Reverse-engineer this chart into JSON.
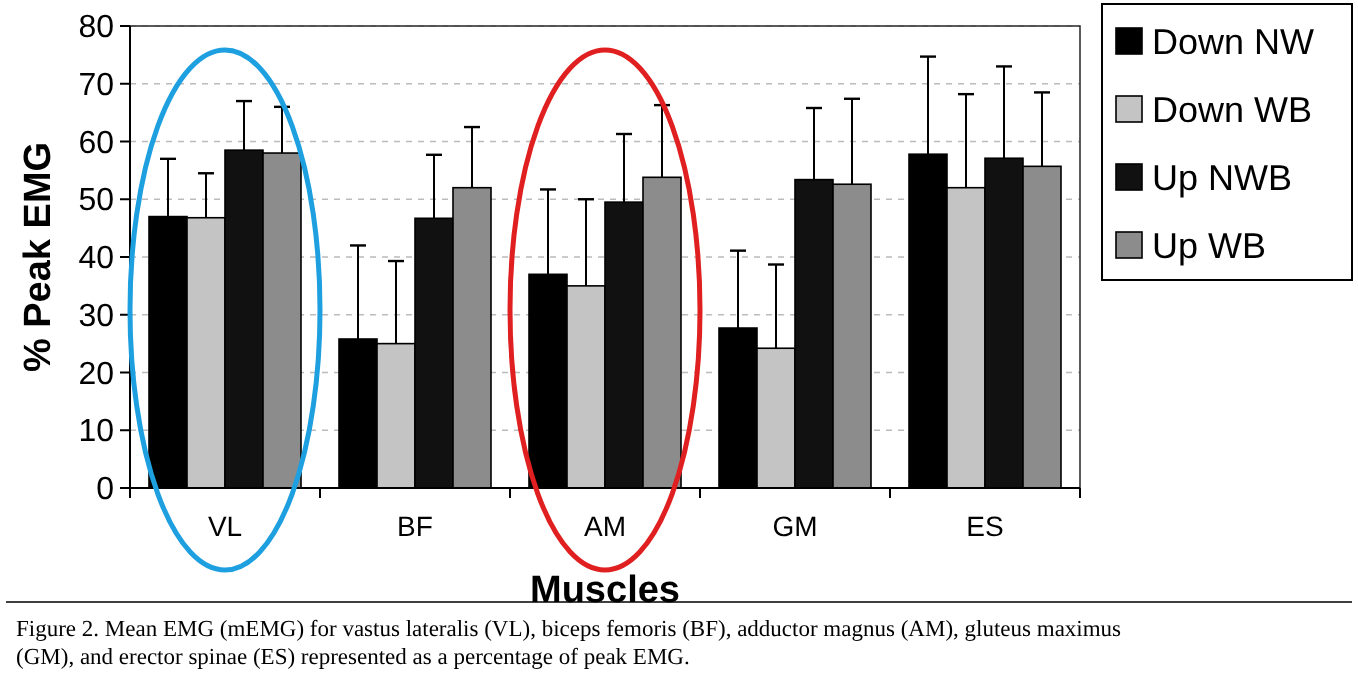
{
  "chart_data": {
    "type": "bar",
    "xlabel": "Muscles",
    "ylabel": "% Peak EMG",
    "categories": [
      "VL",
      "BF",
      "AM",
      "GM",
      "ES"
    ],
    "series": [
      {
        "name": "Down NW",
        "color": "#000000",
        "values": [
          47,
          25.8,
          37,
          27.7,
          57.8
        ],
        "errors": [
          [
            47,
            57
          ],
          [
            25.8,
            42
          ],
          [
            37,
            51.7
          ],
          [
            27.7,
            41.1
          ],
          [
            57.8,
            74.7
          ]
        ]
      },
      {
        "name": "Down WB",
        "color": "#c4c4c4",
        "values": [
          46.8,
          25,
          35,
          24.2,
          52
        ],
        "errors": [
          [
            46.8,
            54.5
          ],
          [
            25,
            39.3
          ],
          [
            35,
            50
          ],
          [
            24.2,
            38.7
          ],
          [
            52,
            68.2
          ]
        ]
      },
      {
        "name": "Up NWB",
        "color": "#111111",
        "values": [
          58.5,
          46.7,
          49.5,
          53.4,
          57.1
        ],
        "errors": [
          [
            58.5,
            67
          ],
          [
            46.7,
            57.7
          ],
          [
            49.5,
            61.3
          ],
          [
            53.4,
            65.8
          ],
          [
            57.1,
            73
          ]
        ]
      },
      {
        "name": "Up WB",
        "color": "#8c8c8c",
        "values": [
          58,
          52,
          53.8,
          52.6,
          55.7
        ],
        "errors": [
          [
            58,
            66
          ],
          [
            52,
            62.5
          ],
          [
            53.8,
            66.3
          ],
          [
            52.6,
            67.4
          ],
          [
            55.7,
            68.5
          ]
        ]
      }
    ],
    "ylim": [
      0,
      80
    ],
    "yticks": [
      0,
      10,
      20,
      30,
      40,
      50,
      60,
      70,
      80
    ],
    "grid": "y",
    "legend": "top right",
    "annotations": [
      "Figure 2.   Mean EMG (mEMG) for vastus lateralis (VL), biceps femoris (BF), adductor magnus (AM), gluteus maximus (GM), and erector spinae (ES) represented as a percentage of peak EMG."
    ]
  }
}
